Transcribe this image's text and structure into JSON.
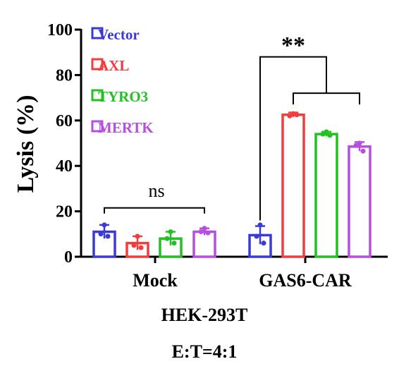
{
  "chart_data": {
    "type": "bar",
    "title": "",
    "xlabel": "",
    "ylabel": "Lysis (%)",
    "ylim": [
      0,
      100
    ],
    "yticks": [
      0,
      20,
      40,
      60,
      80,
      100
    ],
    "grid": false,
    "legend_position": "top-left",
    "categories": [
      "Mock",
      "GAS6-CAR"
    ],
    "series": [
      {
        "name": "Vector",
        "color": "#3a3ad6",
        "values": [
          11,
          9.5
        ],
        "error": [
          3,
          4
        ],
        "points": [
          [
            14,
            10,
            9
          ],
          [
            14,
            9,
            6
          ]
        ]
      },
      {
        "name": "AXL",
        "color": "#f23d3d",
        "values": [
          6,
          62.5
        ],
        "error": [
          3,
          1
        ],
        "points": [
          [
            9,
            5,
            4
          ],
          [
            63,
            62,
            62.5
          ]
        ]
      },
      {
        "name": "TYRO3",
        "color": "#22c122",
        "values": [
          8,
          54
        ],
        "error": [
          3,
          1
        ],
        "points": [
          [
            11,
            8,
            6
          ],
          [
            55,
            54,
            53.5
          ]
        ]
      },
      {
        "name": "MERTK",
        "color": "#b84ee0",
        "values": [
          11,
          48.5
        ],
        "error": [
          1.5,
          2
        ],
        "points": [
          [
            12.5,
            11,
            10.5
          ],
          [
            50,
            49,
            46.5
          ]
        ]
      }
    ],
    "annotations": {
      "mock_significance": "ns",
      "car_significance": "**"
    },
    "subtitle_lines": [
      "HEK-293T",
      "E:T=4:1"
    ]
  }
}
